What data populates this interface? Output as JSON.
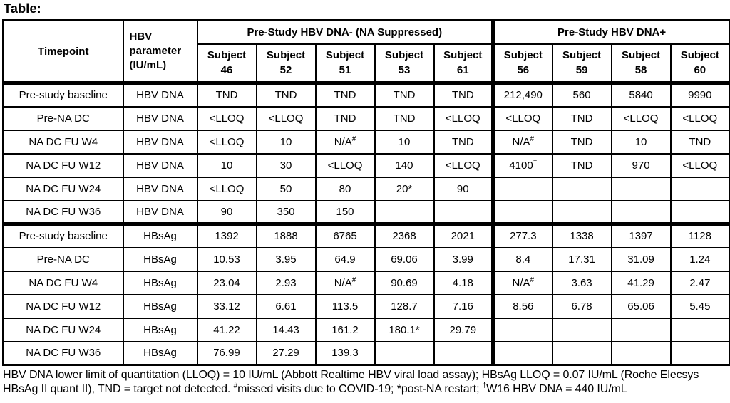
{
  "title": "Table:",
  "table": {
    "header": {
      "timepoint": "Timepoint",
      "parameter": "HBV parameter (IU/mL)",
      "group1": "Pre-Study HBV DNA- (NA Suppressed)",
      "group2": "Pre-Study HBV DNA+",
      "subject_label": "Subject",
      "group1_subjects": [
        "46",
        "52",
        "51",
        "53",
        "61"
      ],
      "group2_subjects": [
        "56",
        "59",
        "58",
        "60"
      ]
    },
    "rows": [
      {
        "timepoint": "Pre-study baseline",
        "parameter": "HBV DNA",
        "values": [
          "TND",
          "TND",
          "TND",
          "TND",
          "TND",
          "212,490",
          "560",
          "5840",
          "9990"
        ]
      },
      {
        "timepoint": "Pre-NA DC",
        "parameter": "HBV DNA",
        "values": [
          "<LLOQ",
          "<LLOQ",
          "TND",
          "TND",
          "<LLOQ",
          "<LLOQ",
          "TND",
          "<LLOQ",
          "<LLOQ"
        ]
      },
      {
        "timepoint": "NA DC FU W4",
        "parameter": "HBV DNA",
        "values": [
          "<LLOQ",
          "10",
          "N/A^#",
          "10",
          "TND",
          "N/A^#",
          "TND",
          "10",
          "TND"
        ]
      },
      {
        "timepoint": "NA DC FU W12",
        "parameter": "HBV DNA",
        "values": [
          "10",
          "30",
          "<LLOQ",
          "140",
          "<LLOQ",
          "4100^†",
          "TND",
          "970",
          "<LLOQ"
        ]
      },
      {
        "timepoint": "NA DC FU W24",
        "parameter": "HBV DNA",
        "values": [
          "<LLOQ",
          "50",
          "80",
          "20*",
          "90",
          "",
          "",
          "",
          ""
        ]
      },
      {
        "timepoint": "NA DC FU W36",
        "parameter": "HBV DNA",
        "values": [
          "90",
          "350",
          "150",
          "",
          "",
          "",
          "",
          "",
          ""
        ]
      },
      {
        "timepoint": "Pre-study baseline",
        "parameter": "HBsAg",
        "values": [
          "1392",
          "1888",
          "6765",
          "2368",
          "2021",
          "277.3",
          "1338",
          "1397",
          "1128"
        ]
      },
      {
        "timepoint": "Pre-NA DC",
        "parameter": "HBsAg",
        "values": [
          "10.53",
          "3.95",
          "64.9",
          "69.06",
          "3.99",
          "8.4",
          "17.31",
          "31.09",
          "1.24"
        ]
      },
      {
        "timepoint": "NA DC FU W4",
        "parameter": "HBsAg",
        "values": [
          "23.04",
          "2.93",
          "N/A^#",
          "90.69",
          "4.18",
          "N/A^#",
          "3.63",
          "41.29",
          "2.47"
        ]
      },
      {
        "timepoint": "NA DC FU W12",
        "parameter": "HBsAg",
        "values": [
          "33.12",
          "6.61",
          "113.5",
          "128.7",
          "7.16",
          "8.56",
          "6.78",
          "65.06",
          "5.45"
        ]
      },
      {
        "timepoint": "NA DC FU W24",
        "parameter": "HBsAg",
        "values": [
          "41.22",
          "14.43",
          "161.2",
          "180.1*",
          "29.79",
          "",
          "",
          "",
          ""
        ]
      },
      {
        "timepoint": "NA DC FU W36",
        "parameter": "HBsAg",
        "values": [
          "76.99",
          "27.29",
          "139.3",
          "",
          "",
          "",
          "",
          "",
          ""
        ]
      }
    ]
  },
  "footnote_parts": [
    {
      "text": "HBV DNA lower limit of quantitation (LLOQ) = 10 IU/mL (Abbott Realtime HBV viral load assay); HBsAg LLOQ = 0.07 IU/mL (Roche Elecsys HBsAg II quant II), TND = target not detected. "
    },
    {
      "sup": "#"
    },
    {
      "text": "missed visits due to COVID-19; *post-NA restart; "
    },
    {
      "sup": "†"
    },
    {
      "text": "W16 HBV DNA = 440 IU/mL"
    }
  ]
}
